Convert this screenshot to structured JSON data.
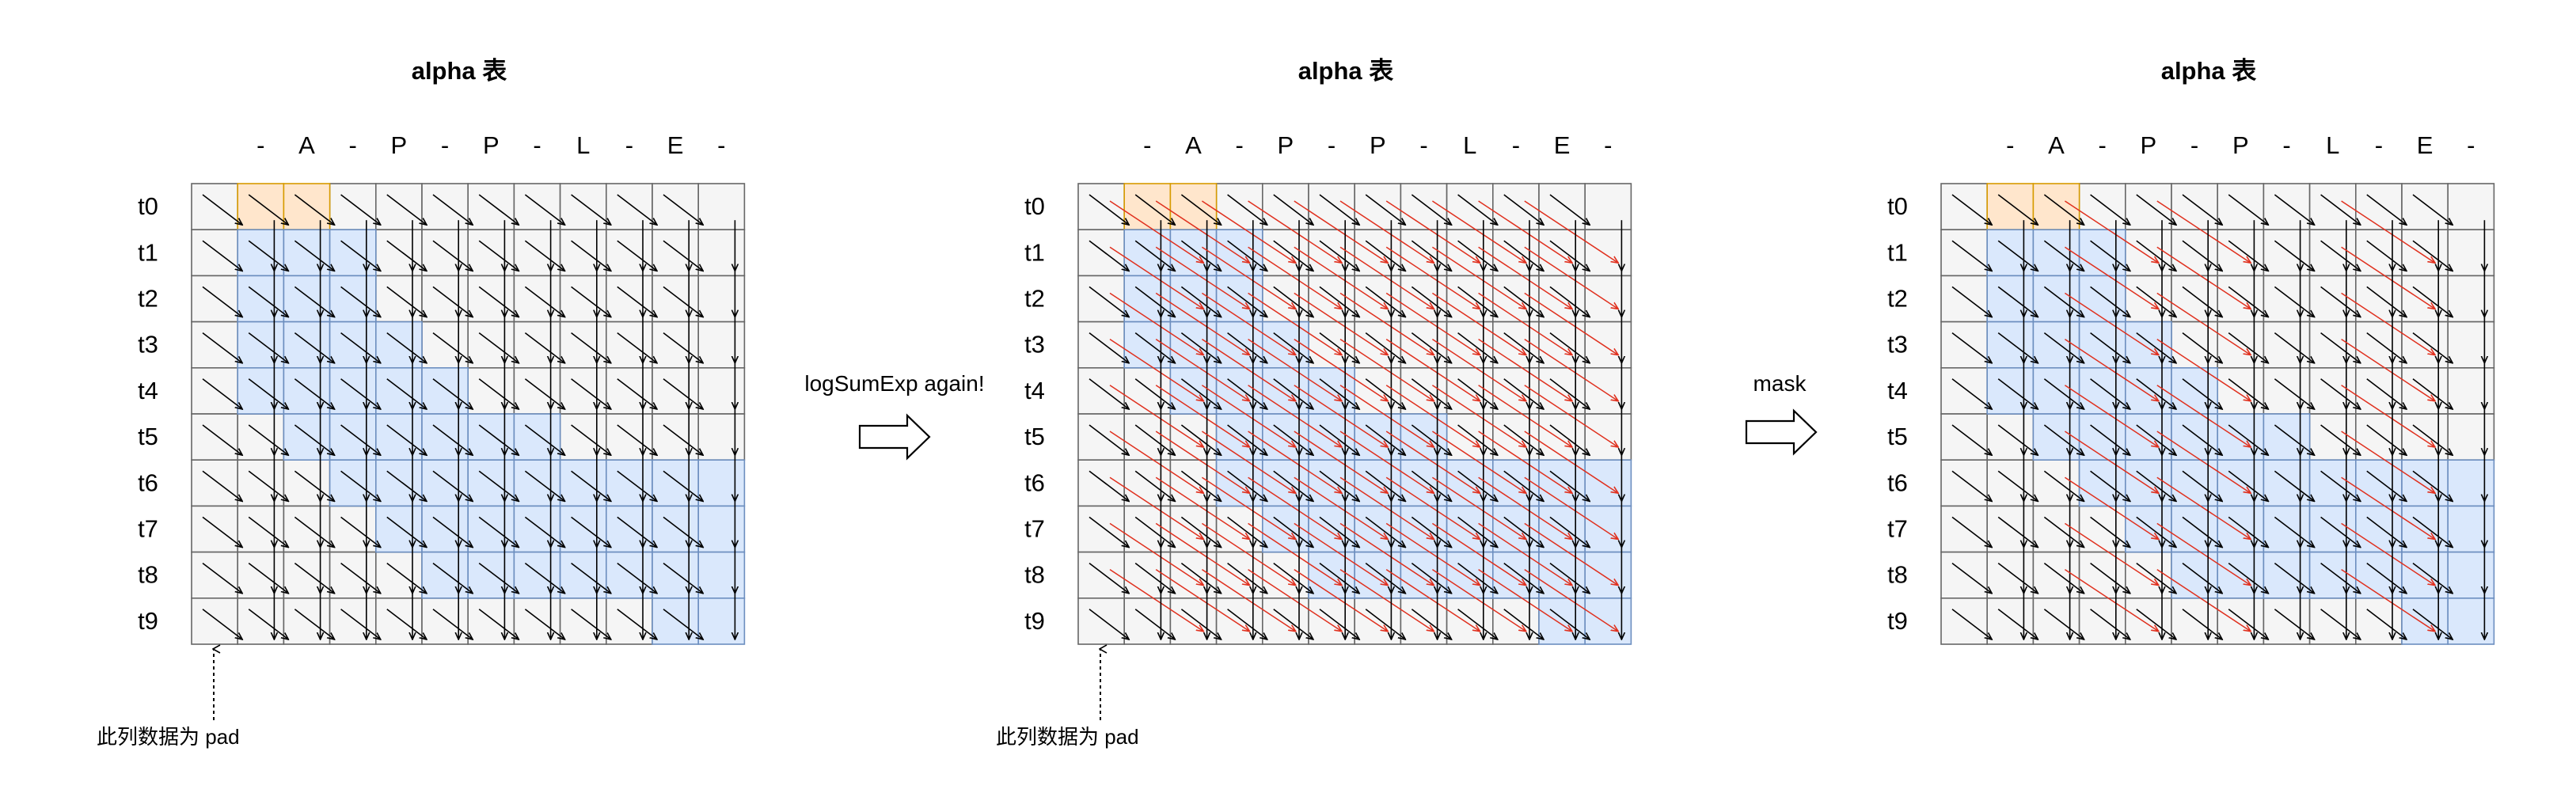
{
  "colors": {
    "grid_line": "#666666",
    "cell_default": "#f5f5f5",
    "cell_orange": "#ffe6cc",
    "cell_orange_border": "#d79b00",
    "cell_blue": "#dae8fc",
    "cell_blue_border": "#6c8ebf",
    "black_arrow": "#000000",
    "red_arrow": "#e0301e"
  },
  "column_labels": [
    "",
    "-",
    "A",
    "-",
    "P",
    "-",
    "P",
    "-",
    "L",
    "-",
    "E",
    "-"
  ],
  "row_labels": [
    "t0",
    "t1",
    "t2",
    "t3",
    "t4",
    "t5",
    "t6",
    "t7",
    "t8",
    "t9"
  ],
  "orange_cells": [
    [
      0,
      1
    ],
    [
      0,
      2
    ]
  ],
  "panels": [
    {
      "id": "before",
      "title": "alpha 表",
      "note": "此列数据为 pad",
      "blue_ranges": [
        [
          1,
          1,
          3
        ],
        [
          2,
          1,
          3
        ],
        [
          3,
          1,
          4
        ],
        [
          4,
          1,
          5
        ],
        [
          5,
          2,
          7
        ],
        [
          6,
          3,
          11
        ],
        [
          7,
          4,
          11
        ],
        [
          8,
          5,
          11
        ],
        [
          9,
          10,
          11
        ]
      ],
      "red_rule": "none"
    },
    {
      "id": "logsumexp",
      "title": "alpha 表",
      "note": "此列数据为 pad",
      "blue_ranges": [
        [
          1,
          1,
          3
        ],
        [
          2,
          1,
          3
        ],
        [
          3,
          1,
          4
        ],
        [
          4,
          2,
          5
        ],
        [
          5,
          3,
          7
        ],
        [
          6,
          3,
          11
        ],
        [
          7,
          4,
          11
        ],
        [
          8,
          5,
          11
        ],
        [
          9,
          10,
          11
        ]
      ],
      "red_rule": "all"
    },
    {
      "id": "masked",
      "title": "alpha 表",
      "note": "",
      "blue_ranges": [
        [
          1,
          1,
          3
        ],
        [
          2,
          1,
          3
        ],
        [
          3,
          1,
          4
        ],
        [
          4,
          1,
          5
        ],
        [
          5,
          2,
          7
        ],
        [
          6,
          3,
          11
        ],
        [
          7,
          4,
          11
        ],
        [
          8,
          5,
          11
        ],
        [
          9,
          10,
          11
        ]
      ],
      "red_rule": "masked"
    }
  ],
  "operations": [
    {
      "label": "logSumExp again!"
    },
    {
      "label": "mask"
    }
  ]
}
